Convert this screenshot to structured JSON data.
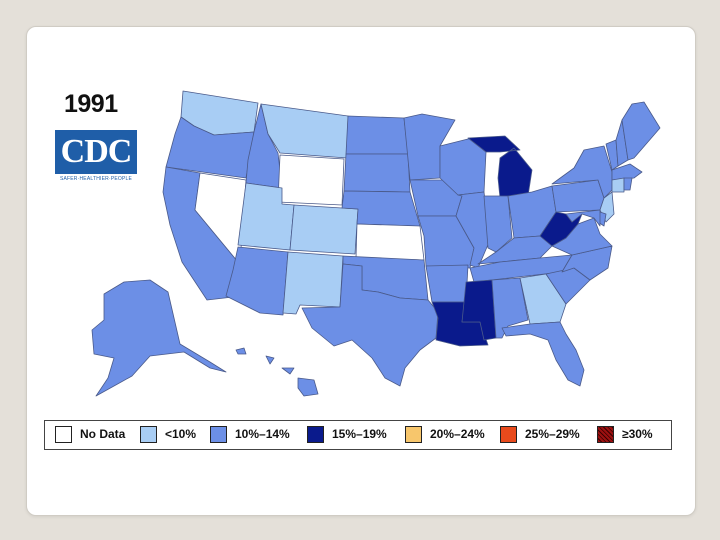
{
  "title_year": "1991",
  "logo": {
    "text": "CDC",
    "tagline": "SAFER·HEALTHIER·PEOPLE"
  },
  "colors": {
    "no_data": "#ffffff",
    "lt10": "#a8cdf4",
    "p10_14": "#6c8fe6",
    "p15_19": "#0a1a8c",
    "p20_24": "#f7c66c",
    "p25_29": "#e84a1c",
    "ge30": "#9c1010"
  },
  "legend": [
    {
      "label": "No Data",
      "color_key": "no_data"
    },
    {
      "label": "<10%",
      "color_key": "lt10"
    },
    {
      "label": "10%–14%",
      "color_key": "p10_14"
    },
    {
      "label": "15%–19%",
      "color_key": "p15_19"
    },
    {
      "label": "20%–24%",
      "color_key": "p20_24"
    },
    {
      "label": "25%–29%",
      "color_key": "p25_29"
    },
    {
      "label": "≥30%",
      "color_key": "ge30"
    }
  ],
  "states": {
    "WA": "lt10",
    "OR": "p10_14",
    "CA": "p10_14",
    "ID": "p10_14",
    "NV": "no_data",
    "MT": "lt10",
    "WY": "no_data",
    "UT": "lt10",
    "CO": "lt10",
    "AZ": "p10_14",
    "NM": "lt10",
    "ND": "p10_14",
    "SD": "p10_14",
    "NE": "p10_14",
    "KS": "no_data",
    "OK": "p10_14",
    "TX": "p10_14",
    "MN": "p10_14",
    "IA": "p10_14",
    "MO": "p10_14",
    "AR": "p10_14",
    "LA": "p15_19",
    "WI": "p10_14",
    "IL": "p10_14",
    "MI": "p15_19",
    "IN": "p10_14",
    "OH": "p10_14",
    "KY": "p10_14",
    "TN": "p10_14",
    "MS": "p15_19",
    "AL": "p10_14",
    "GA": "lt10",
    "FL": "p10_14",
    "SC": "p10_14",
    "NC": "p10_14",
    "VA": "p10_14",
    "WV": "p15_19",
    "PA": "p10_14",
    "NY": "p10_14",
    "ME": "p10_14",
    "NH": "p10_14",
    "VT": "p10_14",
    "MA": "p10_14",
    "CT": "lt10",
    "NJ": "lt10",
    "MD": "p10_14",
    "DE": "p10_14",
    "RI": "p10_14",
    "AK": "p10_14",
    "HI": "p10_14"
  }
}
